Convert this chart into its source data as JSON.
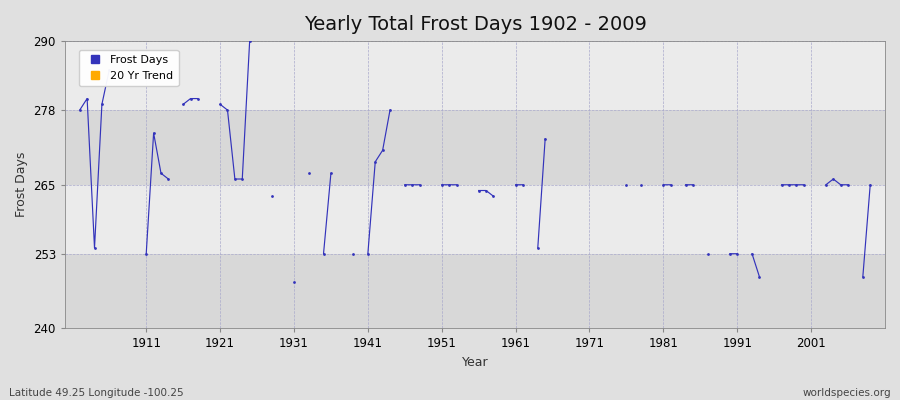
{
  "title": "Yearly Total Frost Days 1902 - 2009",
  "xlabel": "Year",
  "ylabel": "Frost Days",
  "subtitle": "Latitude 49.25 Longitude -100.25",
  "watermark": "worldspecies.org",
  "ylim": [
    240,
    290
  ],
  "yticks": [
    240,
    253,
    265,
    278,
    290
  ],
  "xticks": [
    1911,
    1921,
    1931,
    1941,
    1951,
    1961,
    1971,
    1981,
    1991,
    2001
  ],
  "xlim": [
    1900,
    2011
  ],
  "line_color": "#3333bb",
  "trend_color": "#ffaa00",
  "bg_color": "#e0e0e0",
  "plot_bg_light": "#ebebeb",
  "plot_bg_dark": "#d8d8d8",
  "years": [
    1902,
    1903,
    1904,
    1905,
    1906,
    1907,
    1908,
    1909,
    1910,
    1911,
    1912,
    1913,
    1914,
    1915,
    1916,
    1917,
    1918,
    1919,
    1920,
    1921,
    1922,
    1923,
    1924,
    1925,
    1926,
    1927,
    1928,
    1929,
    1930,
    1931,
    1932,
    1933,
    1934,
    1935,
    1936,
    1937,
    1938,
    1939,
    1940,
    1941,
    1942,
    1943,
    1944,
    1945,
    1946,
    1947,
    1948,
    1949,
    1950,
    1951,
    1952,
    1953,
    1954,
    1955,
    1956,
    1957,
    1958,
    1959,
    1960,
    1961,
    1962,
    1963,
    1964,
    1965,
    1966,
    1967,
    1968,
    1969,
    1970,
    1971,
    1972,
    1973,
    1974,
    1975,
    1976,
    1977,
    1978,
    1979,
    1980,
    1981,
    1982,
    1983,
    1984,
    1985,
    1986,
    1987,
    1988,
    1989,
    1990,
    1991,
    1992,
    1993,
    1994,
    1995,
    1996,
    1997,
    1998,
    1999,
    2000,
    2001,
    2002,
    2003,
    2004,
    2005,
    2006,
    2007,
    2008,
    2009
  ],
  "values": [
    278,
    280,
    254,
    279,
    285,
    null,
    null,
    null,
    null,
    253,
    274,
    267,
    266,
    null,
    279,
    280,
    280,
    null,
    null,
    279,
    278,
    266,
    266,
    290,
    null,
    null,
    263,
    null,
    null,
    248,
    null,
    267,
    null,
    253,
    267,
    null,
    null,
    253,
    null,
    253,
    269,
    271,
    278,
    null,
    265,
    265,
    265,
    null,
    null,
    265,
    265,
    265,
    null,
    null,
    264,
    264,
    263,
    null,
    null,
    265,
    265,
    null,
    254,
    273,
    null,
    null,
    null,
    null,
    null,
    null,
    null,
    null,
    null,
    null,
    265,
    null,
    265,
    null,
    null,
    265,
    265,
    null,
    265,
    265,
    null,
    253,
    null,
    null,
    253,
    253,
    null,
    253,
    249,
    null,
    null,
    265,
    265,
    265,
    265,
    null,
    null,
    265,
    266,
    265,
    265,
    null,
    249,
    265
  ]
}
